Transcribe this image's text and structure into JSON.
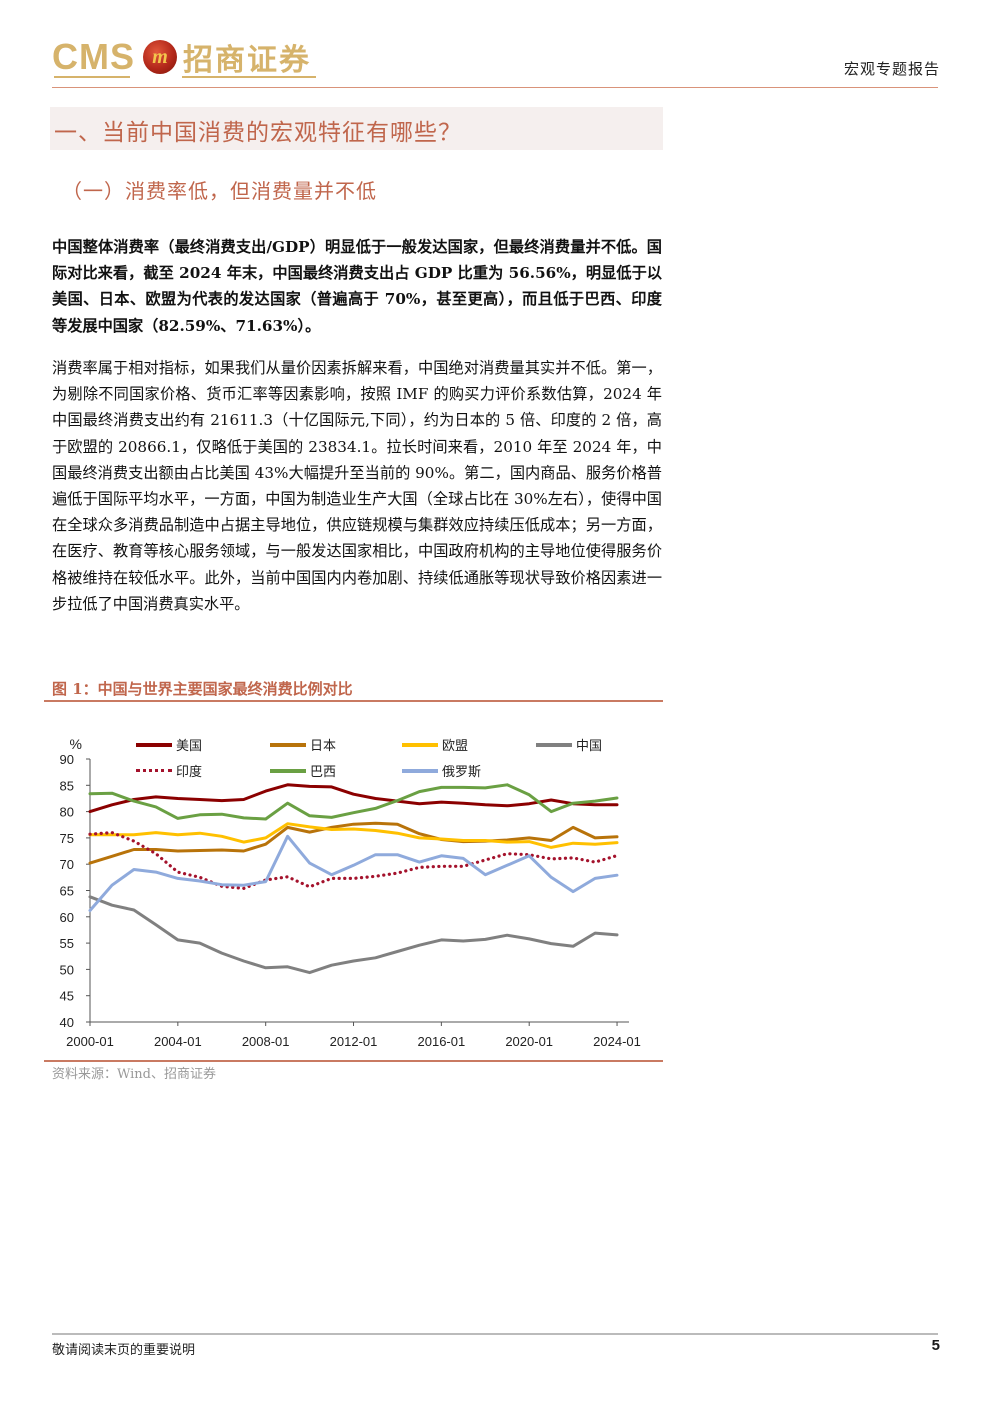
{
  "header": {
    "logo_text_en": "CMS",
    "logo_badge_text": "m",
    "logo_text_cn": "招商证券",
    "report_type": "宏观专题报告"
  },
  "section": {
    "heading": "一、当前中国消费的宏观特征有哪些？",
    "subheading": "（一）消费率低，但消费量并不低"
  },
  "paragraphs": [
    "中国整体消费率（最终消费支出/GDP）明显低于一般发达国家，但最终消费量并不低。国际对比来看，截至 2024 年末，中国最终消费支出占 GDP 比重为 56.56%，明显低于以美国、日本、欧盟为代表的发达国家（普遍高于 70%，甚至更高），而且低于巴西、印度等发展中国家（82.59%、71.63%）。",
    "消费率属于相对指标，如果我们从量价因素拆解来看，中国绝对消费量其实并不低。第一，为剔除不同国家价格、货币汇率等因素影响，按照 IMF 的购买力评价系数估算，2024 年中国最终消费支出约有 21611.3（十亿国际元,下同），约为日本的 5 倍、印度的 2 倍，高于欧盟的 20866.1，仅略低于美国的 23834.1。拉长时间来看，2010 年至 2024 年，中国最终消费支出额由占比美国 43%大幅提升至当前的 90%。第二，国内商品、服务价格普遍低于国际平均水平，一方面，中国为制造业生产大国（全球占比在 30%左右），使得中国在全球众多消费品制造中占据主导地位，供应链规模与集群效应持续压低成本；另一方面，在医疗、教育等核心服务领域，与一般发达国家相比，中国政府机构的主导地位使得服务价格被维持在较低水平。此外，当前中国国内内卷加剧、持续低通胀等现状导致价格因素进一步拉低了中国消费真实水平。"
  ],
  "figure": {
    "title": "图 1：中国与世界主要国家最终消费比例对比",
    "source": "资料来源：Wind、招商证券"
  },
  "chart_data": {
    "type": "line",
    "title": "图 1：中国与世界主要国家最终消费比例对比",
    "ylabel": "%",
    "xlabel": "",
    "ylim": [
      40,
      90
    ],
    "yticks": [
      40,
      45,
      50,
      55,
      60,
      65,
      70,
      75,
      80,
      85,
      90
    ],
    "xtick_labels": [
      "2000-01",
      "2004-01",
      "2008-01",
      "2012-01",
      "2016-01",
      "2020-01",
      "2024-01"
    ],
    "xtick_years": [
      2000,
      2004,
      2008,
      2012,
      2016,
      2020,
      2024
    ],
    "x": [
      2000,
      2001,
      2002,
      2003,
      2004,
      2005,
      2006,
      2007,
      2008,
      2009,
      2010,
      2011,
      2012,
      2013,
      2014,
      2015,
      2016,
      2017,
      2018,
      2019,
      2020,
      2021,
      2022,
      2023,
      2024
    ],
    "legend_position": "top",
    "grid": false,
    "series": [
      {
        "name": "美国",
        "color": "#8b0000",
        "style": "solid",
        "values": [
          80.0,
          81.3,
          82.3,
          82.8,
          82.5,
          82.3,
          82.1,
          82.3,
          83.9,
          85.1,
          84.8,
          84.7,
          83.3,
          82.5,
          82.0,
          81.5,
          81.8,
          81.6,
          81.3,
          81.1,
          81.5,
          82.2,
          81.5,
          81.3,
          81.3
        ]
      },
      {
        "name": "日本",
        "color": "#b8730a",
        "style": "solid",
        "values": [
          70.2,
          71.5,
          72.8,
          72.8,
          72.5,
          72.6,
          72.7,
          72.5,
          73.8,
          77.0,
          76.1,
          77.0,
          77.6,
          77.8,
          77.6,
          75.8,
          74.7,
          74.3,
          74.4,
          74.6,
          75.0,
          74.5,
          77.0,
          75.0,
          75.2
        ]
      },
      {
        "name": "欧盟",
        "color": "#ffc000",
        "style": "solid",
        "values": [
          75.6,
          75.6,
          75.6,
          76.0,
          75.6,
          75.9,
          75.3,
          74.2,
          75.0,
          77.7,
          77.1,
          76.6,
          76.7,
          76.4,
          75.9,
          75.0,
          74.8,
          74.5,
          74.5,
          74.2,
          74.3,
          73.2,
          74.0,
          73.8,
          74.1
        ]
      },
      {
        "name": "中国",
        "color": "#808080",
        "style": "solid",
        "values": [
          63.8,
          62.2,
          61.3,
          58.5,
          55.6,
          55.0,
          53.1,
          51.6,
          50.3,
          50.5,
          49.4,
          50.8,
          51.6,
          52.2,
          53.4,
          54.6,
          55.6,
          55.4,
          55.7,
          56.5,
          55.8,
          54.9,
          54.4,
          56.9,
          56.56
        ]
      },
      {
        "name": "印度",
        "color": "#a4122c",
        "style": "dotted",
        "values": [
          75.7,
          76.0,
          74.4,
          72.0,
          68.5,
          67.5,
          65.8,
          65.4,
          67.0,
          67.6,
          65.7,
          67.3,
          67.3,
          67.7,
          68.3,
          69.4,
          69.6,
          69.6,
          70.8,
          72.0,
          71.8,
          71.0,
          71.2,
          70.4,
          71.63
        ]
      },
      {
        "name": "巴西",
        "color": "#6aa043",
        "style": "solid",
        "values": [
          83.4,
          83.5,
          82.0,
          80.9,
          78.7,
          79.4,
          79.5,
          78.8,
          78.6,
          81.6,
          79.2,
          78.9,
          79.8,
          80.6,
          82.1,
          83.8,
          84.6,
          84.6,
          84.5,
          85.1,
          83.2,
          80.0,
          81.6,
          82.0,
          82.59
        ]
      },
      {
        "name": "俄罗斯",
        "color": "#8faadc",
        "style": "solid",
        "values": [
          61.2,
          66.0,
          69.0,
          68.5,
          67.3,
          66.8,
          66.1,
          66.0,
          66.7,
          75.3,
          70.2,
          68.0,
          69.8,
          71.8,
          71.8,
          70.4,
          71.6,
          71.1,
          68.0,
          69.8,
          71.6,
          67.5,
          64.8,
          67.3,
          67.9
        ]
      }
    ]
  },
  "footer": {
    "disclaimer": "敬请阅读末页的重要说明",
    "page_number": "5"
  },
  "colors": {
    "accent": "#c0664c",
    "logo_gold": "#d6b36b",
    "heading_band": "#f5efee"
  }
}
